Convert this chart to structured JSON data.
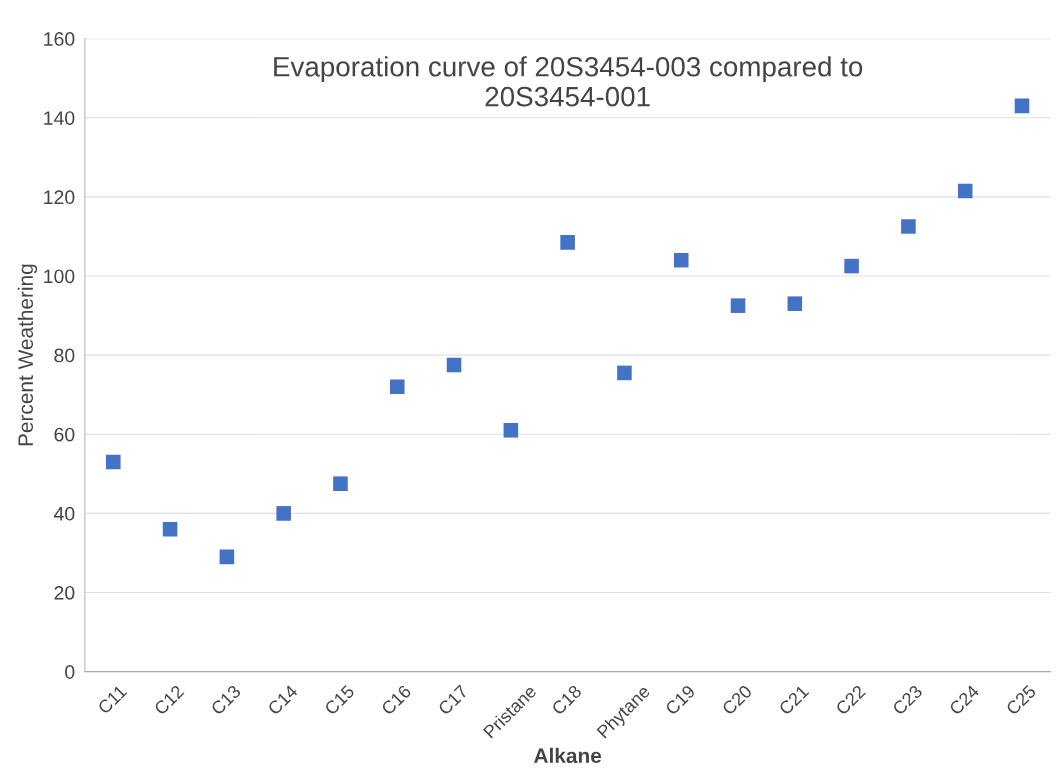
{
  "chart_data": {
    "type": "scatter",
    "title": "Evaporation curve of 20S3454-003 compared to\n20S3454-001",
    "xlabel": "Alkane",
    "ylabel": "Percent Weathering",
    "categories": [
      "C11",
      "C12",
      "C13",
      "C14",
      "C15",
      "C16",
      "C17",
      "Pristane",
      "C18",
      "Phytane",
      "C19",
      "C20",
      "C21",
      "C22",
      "C23",
      "C24",
      "C25"
    ],
    "series": [
      {
        "color": "#4472c4",
        "values": [
          53,
          36,
          29,
          40,
          47.5,
          72,
          77.5,
          61,
          108.5,
          75.5,
          104,
          92.5,
          93,
          102.5,
          112.5,
          121.5,
          143
        ]
      }
    ],
    "ylim": [
      0,
      160
    ],
    "yticks": [
      0,
      20,
      40,
      60,
      80,
      100,
      120,
      140,
      160
    ],
    "grid": "y",
    "marker": "square",
    "legend": false
  }
}
